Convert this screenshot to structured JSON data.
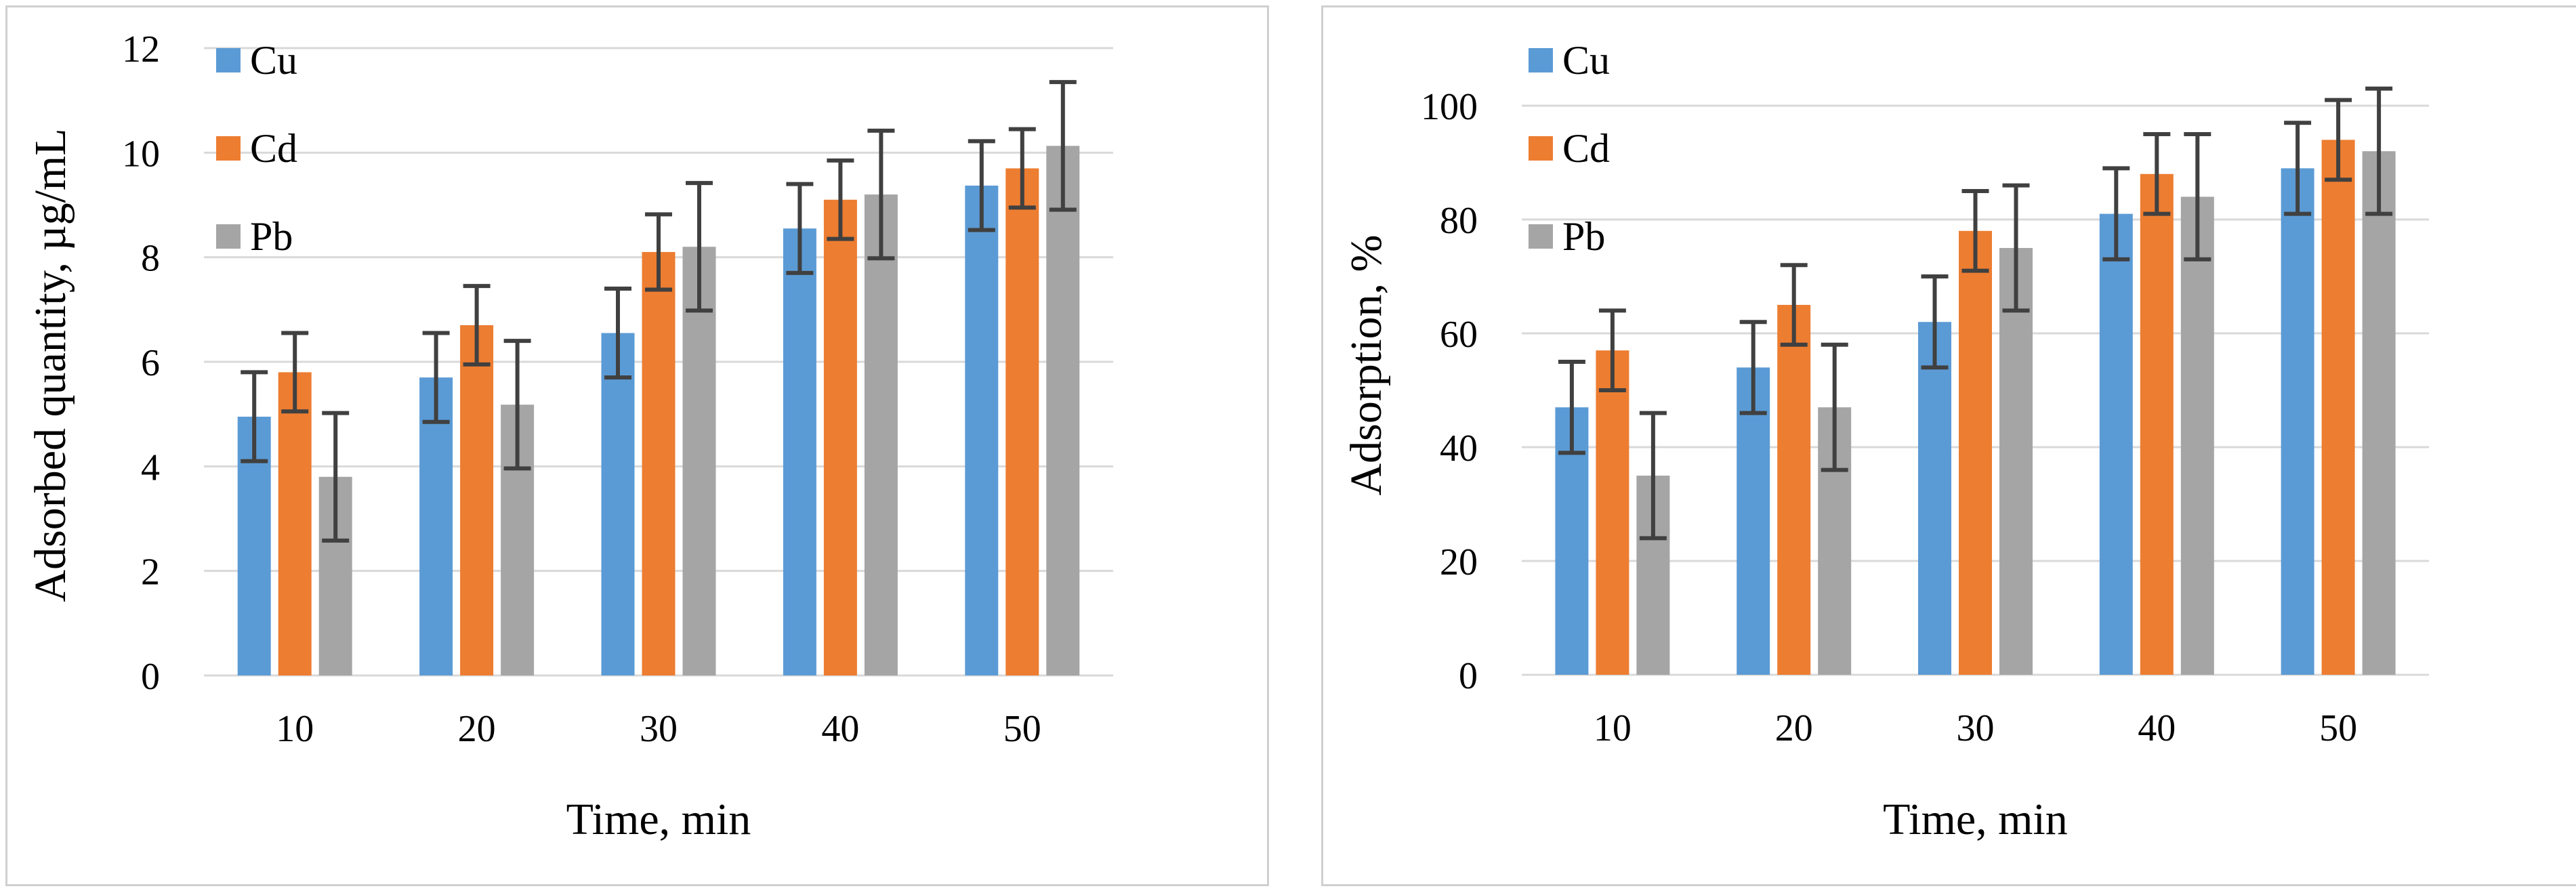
{
  "chart_data": [
    {
      "type": "bar",
      "title": "",
      "xlabel": "Time, min",
      "ylabel": "Adsorbed quantity, µg/mL",
      "categories": [
        "10",
        "20",
        "30",
        "40",
        "50"
      ],
      "ylim": [
        0,
        12
      ],
      "yticks": [
        0,
        2,
        4,
        6,
        8,
        10,
        12
      ],
      "grid": true,
      "legend": "top-left",
      "series": [
        {
          "name": "Cu",
          "color": "#5b9bd5",
          "values": [
            4.95,
            5.7,
            6.55,
            8.55,
            9.37
          ],
          "errors": [
            0.85,
            0.85,
            0.85,
            0.85,
            0.85
          ]
        },
        {
          "name": "Cd",
          "color": "#ed7d31",
          "values": [
            5.8,
            6.7,
            8.1,
            9.1,
            9.7
          ],
          "errors": [
            0.75,
            0.75,
            0.72,
            0.75,
            0.75
          ]
        },
        {
          "name": "Pb",
          "color": "#a5a5a5",
          "values": [
            3.8,
            5.18,
            8.2,
            9.2,
            10.13
          ],
          "errors": [
            1.22,
            1.22,
            1.22,
            1.22,
            1.22
          ]
        }
      ]
    },
    {
      "type": "bar",
      "title": "",
      "xlabel": "Time, min",
      "ylabel": "Adsorption, %",
      "categories": [
        "10",
        "20",
        "30",
        "40",
        "50"
      ],
      "ylim": [
        0,
        110
      ],
      "yticks": [
        0,
        20,
        40,
        60,
        80,
        100
      ],
      "grid": true,
      "legend": "top-left",
      "series": [
        {
          "name": "Cu",
          "color": "#5b9bd5",
          "values": [
            47,
            54,
            62,
            81,
            89
          ],
          "errors": [
            8,
            8,
            8,
            8,
            8
          ]
        },
        {
          "name": "Cd",
          "color": "#ed7d31",
          "values": [
            57,
            65,
            78,
            88,
            94
          ],
          "errors": [
            7,
            7,
            7,
            7,
            7
          ]
        },
        {
          "name": "Pb",
          "color": "#a5a5a5",
          "values": [
            35,
            47,
            75,
            84,
            92
          ],
          "errors": [
            11,
            11,
            11,
            11,
            11
          ]
        }
      ]
    }
  ]
}
